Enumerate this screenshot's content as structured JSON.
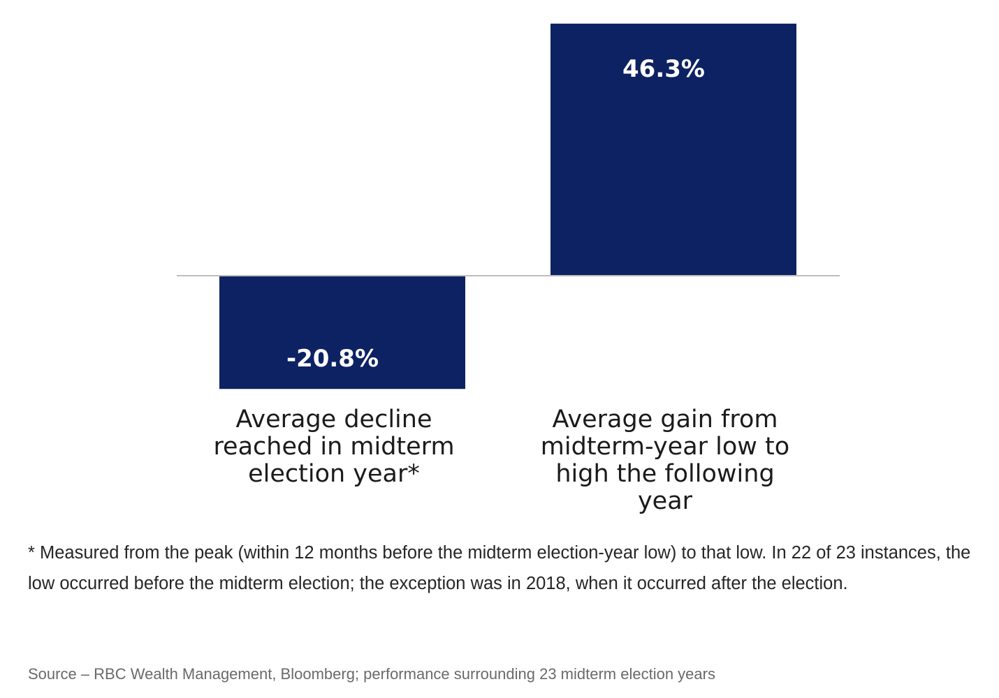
{
  "chart_data": {
    "type": "bar",
    "categories": [
      "Average decline reached in midterm election year*",
      "Average gain from midterm-year low to high the following year"
    ],
    "category_lines": [
      [
        "Average decline",
        "reached in midterm",
        "election year*"
      ],
      [
        "Average gain from",
        "midterm-year low to",
        "high the following year"
      ]
    ],
    "values": [
      -20.8,
      46.3
    ],
    "data_labels": [
      "-20.8%",
      "46.3%"
    ],
    "unit": "%",
    "title": "",
    "xlabel": "",
    "ylabel": "",
    "ylim": [
      -20.8,
      46.3
    ],
    "grid": false,
    "legend": "none",
    "bar_color": "#0d2262",
    "baseline_color": "#bdbdbd",
    "label_color": "#ffffff"
  },
  "footnote": "* Measured from the peak (within 12 months before the midterm election-year low) to that low. In 22 of 23 instances, the low occurred before the midterm election; the exception was in 2018, when it occurred after the election.",
  "source": "Source – RBC Wealth Management, Bloomberg; performance surrounding 23 midterm election years"
}
